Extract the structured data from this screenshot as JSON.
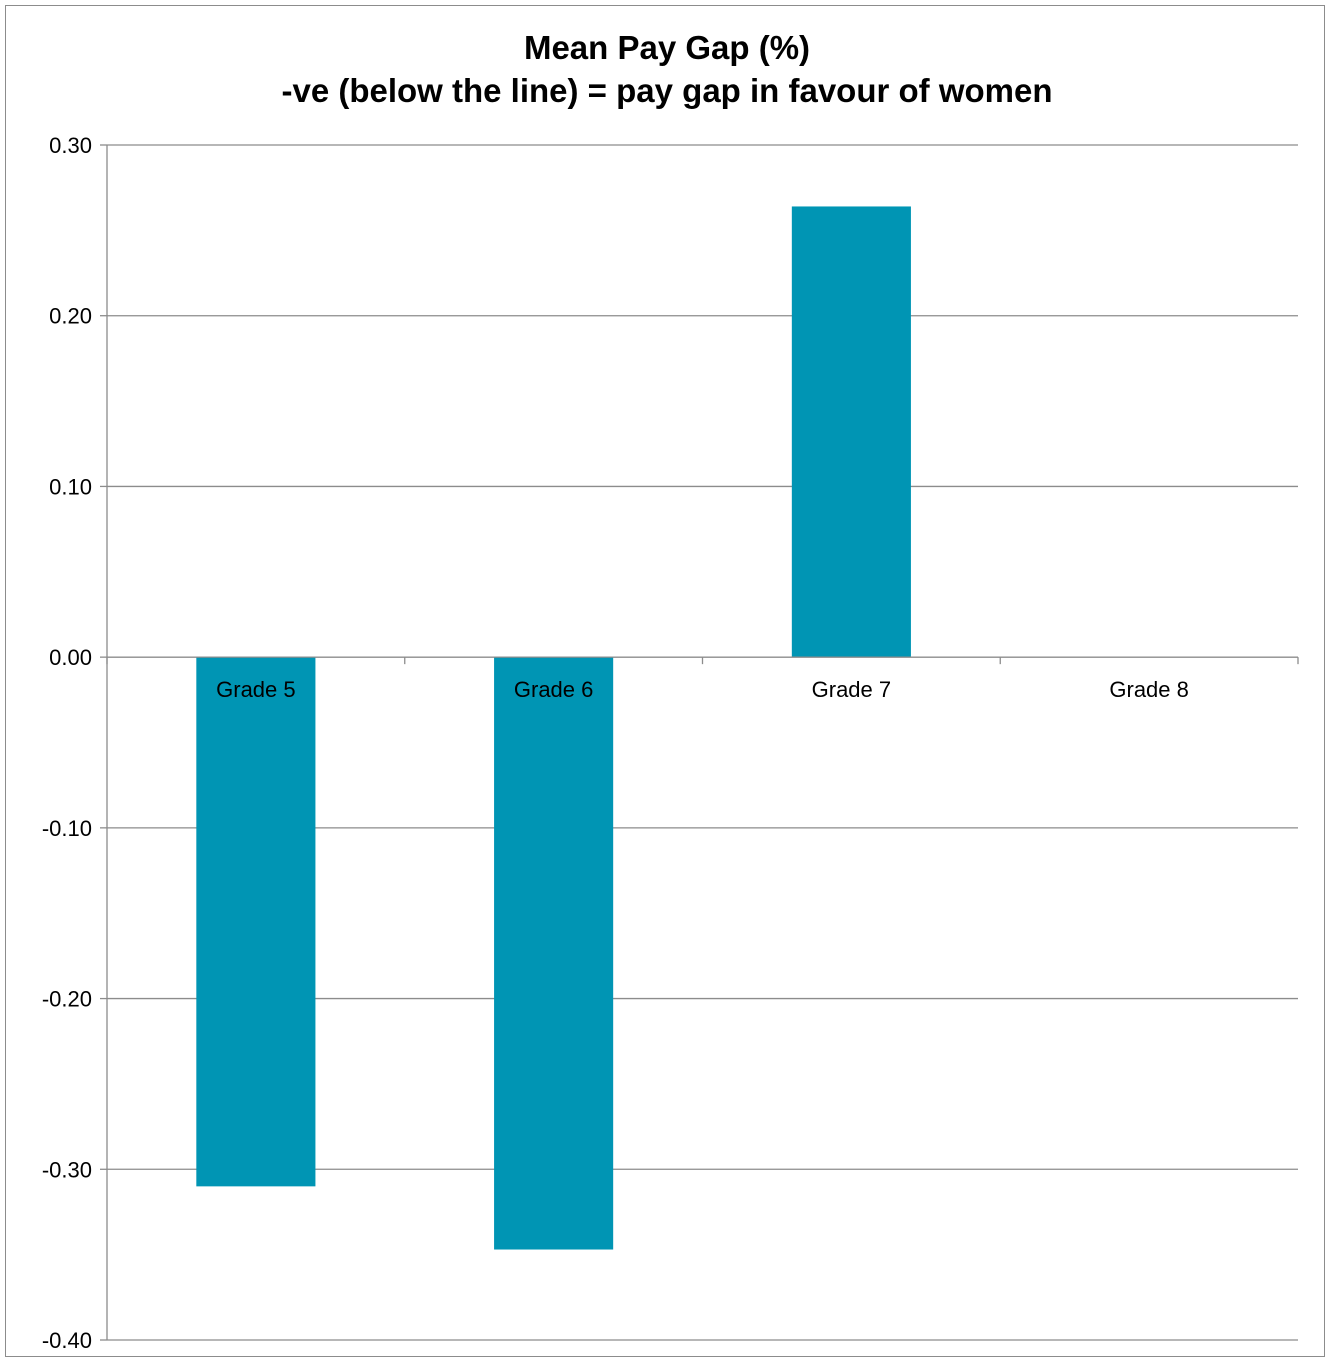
{
  "chart_data": {
    "type": "bar",
    "title": "Mean Pay Gap (%)",
    "subtitle": "-ve (below the line) = pay gap in favour of women",
    "categories": [
      "Grade 5",
      "Grade 6",
      "Grade 7",
      "Grade 8"
    ],
    "values": [
      -0.31,
      -0.347,
      0.264,
      0
    ],
    "ylim": [
      -0.4,
      0.3
    ],
    "yticks": [
      "0.30",
      "0.20",
      "0.10",
      "0.00",
      "-0.10",
      "-0.20",
      "-0.30",
      "-0.40"
    ],
    "grid": true,
    "legend": "none",
    "bar_color": "#0095B4"
  }
}
